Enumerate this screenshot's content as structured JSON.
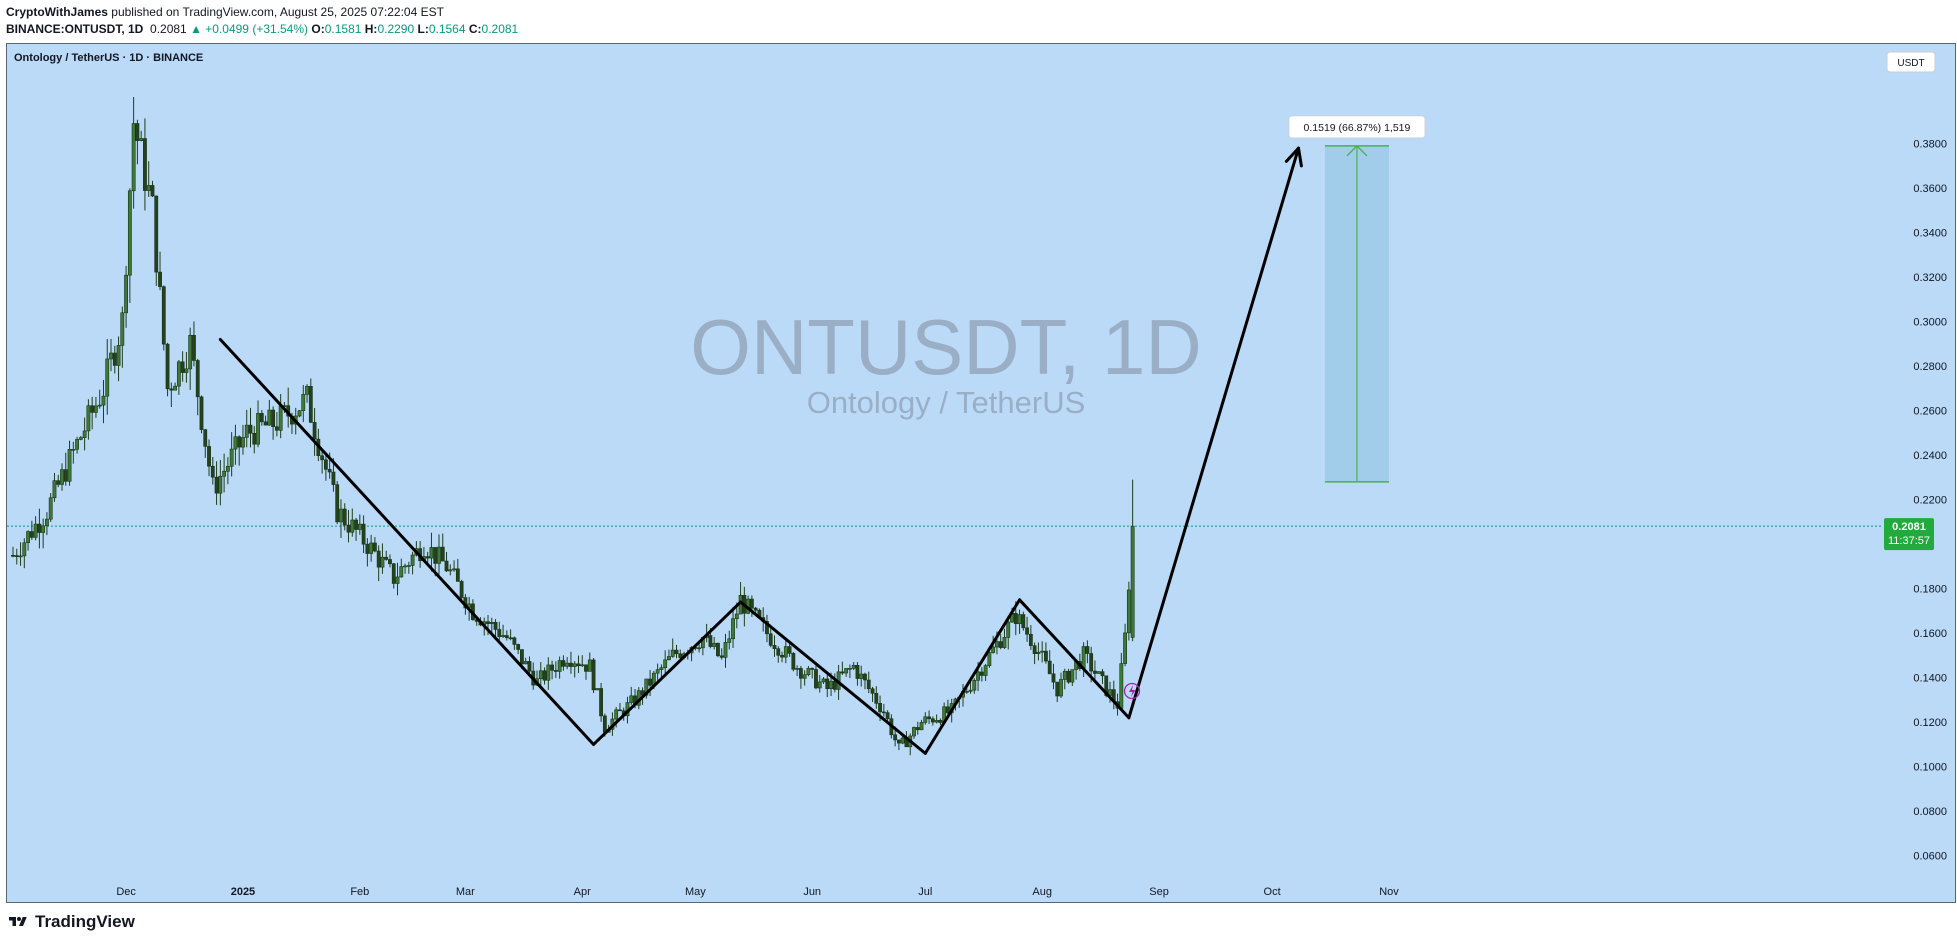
{
  "header": {
    "author": "CryptoWithJames",
    "published_text": "published on TradingView.com, August 25, 2025 07:22:04 EST",
    "symbol": "BINANCE:ONTUSDT, 1D",
    "last": "0.2081",
    "change": "▲ +0.0499 (+31.54%)",
    "o_label": "O:",
    "o_val": "0.1581",
    "h_label": "H:",
    "h_val": "0.2290",
    "l_label": "L:",
    "l_val": "0.1564",
    "c_label": "C:",
    "c_val": "0.2081"
  },
  "chart_title": "Ontology / TetherUS · 1D · BINANCE",
  "currency_button": "USDT",
  "watermark": {
    "main": "ONTUSDT, 1D",
    "sub": "Ontology / TetherUS"
  },
  "price_tag": {
    "price": "0.2081",
    "countdown": "11:37:57"
  },
  "measure_label": "0.1519 (66.87%) 1,519",
  "footer": {
    "brand": "TradingView"
  },
  "colors": {
    "background": "#bbdaf8",
    "up": "#089981",
    "candle": "#2d5a27",
    "measure": "#4caf50",
    "pattern": "#000000"
  },
  "chart_data": {
    "type": "candlestick",
    "y_ticks": [
      "0.3800",
      "0.3600",
      "0.3400",
      "0.3200",
      "0.3000",
      "0.2800",
      "0.2600",
      "0.2400",
      "0.2200",
      "0.1800",
      "0.1600",
      "0.1400",
      "0.1200",
      "0.1000",
      "0.0800",
      "0.0600"
    ],
    "ylim": [
      0.05,
      0.405
    ],
    "x_ticks": [
      "Dec",
      "2025",
      "Feb",
      "Mar",
      "Apr",
      "May",
      "Jun",
      "Jul",
      "Aug",
      "Sep",
      "Oct",
      "Nov"
    ],
    "x_tick_dates": [
      "2024-12-01",
      "2025-01-01",
      "2025-02-01",
      "2025-03-01",
      "2025-04-01",
      "2025-05-01",
      "2025-06-01",
      "2025-07-01",
      "2025-08-01",
      "2025-09-01",
      "2025-10-01",
      "2025-11-01"
    ],
    "date_range": [
      "2024-11-01",
      "2025-11-27"
    ],
    "price_path": [
      [
        "2024-11-01",
        0.195
      ],
      [
        "2024-11-10",
        0.215
      ],
      [
        "2024-11-18",
        0.245
      ],
      [
        "2024-11-25",
        0.27
      ],
      [
        "2024-11-30",
        0.3
      ],
      [
        "2024-12-03",
        0.39
      ],
      [
        "2024-12-08",
        0.35
      ],
      [
        "2024-12-12",
        0.27
      ],
      [
        "2024-12-18",
        0.29
      ],
      [
        "2024-12-24",
        0.225
      ],
      [
        "2025-01-02",
        0.25
      ],
      [
        "2025-01-10",
        0.255
      ],
      [
        "2025-01-18",
        0.265
      ],
      [
        "2025-01-26",
        0.215
      ],
      [
        "2025-02-03",
        0.2
      ],
      [
        "2025-02-10",
        0.185
      ],
      [
        "2025-02-18",
        0.2
      ],
      [
        "2025-02-24",
        0.19
      ],
      [
        "2025-03-03",
        0.17
      ],
      [
        "2025-03-12",
        0.158
      ],
      [
        "2025-03-20",
        0.138
      ],
      [
        "2025-03-28",
        0.15
      ],
      [
        "2025-04-03",
        0.145
      ],
      [
        "2025-04-07",
        0.118
      ],
      [
        "2025-04-15",
        0.13
      ],
      [
        "2025-04-25",
        0.15
      ],
      [
        "2025-05-03",
        0.158
      ],
      [
        "2025-05-08",
        0.148
      ],
      [
        "2025-05-13",
        0.175
      ],
      [
        "2025-05-20",
        0.16
      ],
      [
        "2025-05-28",
        0.145
      ],
      [
        "2025-06-05",
        0.135
      ],
      [
        "2025-06-12",
        0.145
      ],
      [
        "2025-06-20",
        0.125
      ],
      [
        "2025-06-24",
        0.108
      ],
      [
        "2025-06-30",
        0.12
      ],
      [
        "2025-07-08",
        0.125
      ],
      [
        "2025-07-18",
        0.15
      ],
      [
        "2025-07-25",
        0.168
      ],
      [
        "2025-07-30",
        0.155
      ],
      [
        "2025-08-05",
        0.135
      ],
      [
        "2025-08-12",
        0.15
      ],
      [
        "2025-08-18",
        0.135
      ],
      [
        "2025-08-21",
        0.128
      ],
      [
        "2025-08-23",
        0.158
      ],
      [
        "2025-08-25",
        0.2081
      ]
    ],
    "last_candle": {
      "date": "2025-08-25",
      "open": 0.1581,
      "high": 0.229,
      "low": 0.1564,
      "close": 0.2081
    },
    "pattern_lines": [
      {
        "from": [
          "2024-12-26",
          0.292
        ],
        "to": [
          "2025-04-04",
          0.11
        ]
      },
      {
        "from": [
          "2025-04-04",
          0.11
        ],
        "to": [
          "2025-05-13",
          0.174
        ]
      },
      {
        "from": [
          "2025-05-13",
          0.174
        ],
        "to": [
          "2025-07-01",
          0.106
        ]
      },
      {
        "from": [
          "2025-07-01",
          0.106
        ],
        "to": [
          "2025-07-26",
          0.175
        ]
      },
      {
        "from": [
          "2025-07-26",
          0.175
        ],
        "to": [
          "2025-08-24",
          0.122
        ]
      },
      {
        "from": [
          "2025-08-24",
          0.122
        ],
        "to": [
          "2025-10-08",
          0.378
        ]
      }
    ],
    "measure_range": {
      "from_price": 0.228,
      "to_price": 0.379,
      "date_start": "2025-10-15",
      "date_end": "2025-11-01"
    },
    "price_line": 0.2081
  }
}
